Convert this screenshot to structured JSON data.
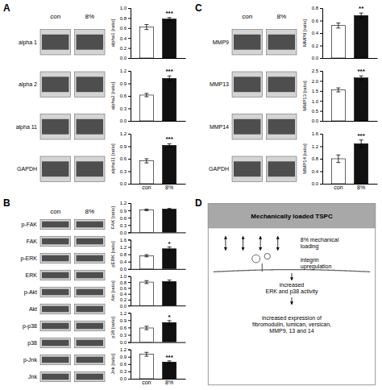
{
  "chart_data": [
    {
      "type": "blot",
      "panel": "A",
      "categories": [
        "con",
        "8%"
      ],
      "rows": [
        "alpha 1",
        "alpha 2",
        "alpha 11",
        "GAPDH"
      ]
    },
    {
      "type": "bar",
      "categories": [
        null,
        null
      ],
      "values": [
        0.62,
        0.78
      ],
      "errors": [
        0.05,
        0.03
      ],
      "colors": [
        "#ffffff",
        "#111111"
      ],
      "y_label": "alpha1 [ratio]",
      "ylim": [
        0,
        1.0
      ],
      "yticks": [
        {
          "value": 0,
          "label": "0.0"
        },
        0.2,
        0.4,
        0.6,
        0.8,
        {
          "value": 1,
          "label": "1.0"
        }
      ],
      "annotation": "***"
    },
    {
      "type": "bar",
      "categories": [
        null,
        null
      ],
      "values": [
        0.62,
        1.02
      ],
      "errors": [
        0.04,
        0.06
      ],
      "colors": [
        "#ffffff",
        "#111111"
      ],
      "y_label": "alpha2 [ratio]",
      "ylim": [
        0,
        1.2
      ],
      "yticks": [
        {
          "value": 0,
          "label": "0.0"
        },
        0.3,
        0.6,
        0.9,
        1.2
      ],
      "annotation": "***"
    },
    {
      "type": "bar",
      "categories": [
        "con",
        "8%"
      ],
      "values": [
        0.55,
        0.92
      ],
      "errors": [
        0.05,
        0.04
      ],
      "colors": [
        "#ffffff",
        "#111111"
      ],
      "y_label": "alpha11 [ratio]",
      "ylim": [
        0,
        1.2
      ],
      "yticks": [
        {
          "value": 0,
          "label": "0.0"
        },
        0.3,
        0.6,
        0.9,
        1.2
      ],
      "annotation": "***"
    },
    {
      "type": "blot",
      "panel": "B",
      "categories": [
        "con",
        "8%"
      ],
      "rows": [
        "p-FAK",
        "FAK",
        "p-ERK",
        "ERK",
        "p-Akt",
        "Akt",
        "p-p38",
        "p38",
        "p-Jnk",
        "Jnk"
      ]
    },
    {
      "type": "bar",
      "categories": [
        null,
        null
      ],
      "values": [
        0.92,
        0.95
      ],
      "errors": [
        0.03,
        0.03
      ],
      "colors": [
        "#ffffff",
        "#111111"
      ],
      "y_label": "FAK [ratio]",
      "ylim": [
        0,
        1.2
      ],
      "yticks": [
        {
          "value": 0,
          "label": "0.0"
        },
        0.3,
        0.6,
        0.9,
        1.2
      ]
    },
    {
      "type": "bar",
      "categories": [
        null,
        null
      ],
      "values": [
        0.72,
        1.1
      ],
      "errors": [
        0.06,
        0.1
      ],
      "colors": [
        "#ffffff",
        "#111111"
      ],
      "y_label": "pERK [ratio]",
      "ylim": [
        0,
        1.6
      ],
      "yticks": [
        {
          "value": 0,
          "label": "0.0"
        },
        0.4,
        0.8,
        1.2,
        1.6
      ],
      "annotation": "*"
    },
    {
      "type": "bar",
      "categories": [
        null,
        null
      ],
      "values": [
        0.8,
        0.82
      ],
      "errors": [
        0.05,
        0.05
      ],
      "colors": [
        "#ffffff",
        "#111111"
      ],
      "y_label": "Akt [ratio]",
      "ylim": [
        0,
        1.0
      ],
      "yticks": [
        {
          "value": 0,
          "label": "0.0"
        },
        0.2,
        0.4,
        0.6,
        0.8,
        {
          "value": 1,
          "label": "1.0"
        }
      ]
    },
    {
      "type": "bar",
      "categories": [
        null,
        null
      ],
      "values": [
        0.58,
        0.8
      ],
      "errors": [
        0.07,
        0.08
      ],
      "colors": [
        "#ffffff",
        "#111111"
      ],
      "y_label": "p38 [ratio]",
      "ylim": [
        0,
        1.2
      ],
      "yticks": [
        {
          "value": 0,
          "label": "0.0"
        },
        0.3,
        0.6,
        0.9,
        1.2
      ],
      "annotation": "*"
    },
    {
      "type": "bar",
      "categories": [
        "con",
        "8%"
      ],
      "values": [
        1.0,
        0.68
      ],
      "errors": [
        0.08,
        0.05
      ],
      "colors": [
        "#ffffff",
        "#111111"
      ],
      "y_label": "Jnk [ratio]",
      "ylim": [
        0,
        1.2
      ],
      "yticks": [
        {
          "value": 0,
          "label": "0.0"
        },
        0.3,
        0.6,
        0.9,
        1.2
      ],
      "annotation": "***"
    },
    {
      "type": "blot",
      "panel": "C",
      "categories": [
        "con",
        "8%"
      ],
      "rows": [
        "MMP9",
        "MMP13",
        "MMP14",
        "GAPDH"
      ]
    },
    {
      "type": "bar",
      "categories": [
        null,
        null
      ],
      "values": [
        0.52,
        0.68
      ],
      "errors": [
        0.04,
        0.04
      ],
      "colors": [
        "#ffffff",
        "#111111"
      ],
      "y_label": "MMP9 [ratio]",
      "ylim": [
        0,
        0.8
      ],
      "yticks": [
        {
          "value": 0,
          "label": "0.0"
        },
        0.2,
        0.4,
        0.6,
        0.8
      ],
      "annotation": "**"
    },
    {
      "type": "bar",
      "categories": [
        null,
        null
      ],
      "values": [
        1.55,
        2.15
      ],
      "errors": [
        0.1,
        0.1
      ],
      "colors": [
        "#ffffff",
        "#111111"
      ],
      "y_label": "MMP13 [ratio]",
      "ylim": [
        0,
        2.5
      ],
      "yticks": [
        {
          "value": 0,
          "label": "0.0"
        },
        0.5,
        {
          "value": 1,
          "label": "1.0"
        },
        1.5,
        {
          "value": 2,
          "label": "2.0"
        },
        2.5
      ],
      "annotation": "***"
    },
    {
      "type": "bar",
      "categories": [
        "con",
        "8%"
      ],
      "values": [
        0.8,
        1.28
      ],
      "errors": [
        0.12,
        0.12
      ],
      "colors": [
        "#ffffff",
        "#111111"
      ],
      "y_label": "MMP14 [ratio]",
      "ylim": [
        0,
        1.6
      ],
      "yticks": [
        {
          "value": 0,
          "label": "0.0"
        },
        0.4,
        0.8,
        1.2,
        1.6
      ],
      "annotation": "***"
    },
    {
      "type": "diagram",
      "panel": "D",
      "title": "Mechanically loaded TSPC",
      "annotations": [
        "8% mechanical\nloading",
        "integrin\nupregulation",
        "increased\nERK and p38 activity",
        "increased expression of\nfibromodulin, lumican, versican,\nMMP9, 13 and 14"
      ]
    }
  ]
}
